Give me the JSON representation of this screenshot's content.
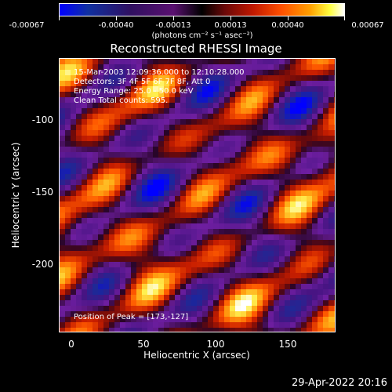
{
  "colorbar": {
    "tick_labels": [
      "-0.00067",
      "-0.00040",
      "-0.00013",
      "0.00013",
      "0.00040",
      "0.00067"
    ],
    "units_text": "(photons cm⁻² s⁻¹ asec⁻²)"
  },
  "title": "Reconstructed RHESSI Image",
  "info": {
    "time_range": "15-Mar-2003 12:09:36.000 to 12:10:28.000",
    "detectors": "Detectors: 3F 4F 5F 6F 7F 8F, Att 0",
    "energy_range": "Energy Range: 25.0 - 50.0 keV",
    "clean_counts": "Clean    Total counts: 595.",
    "peak": "Position of Peak = [173,-127]"
  },
  "axes": {
    "xlabel": "Heliocentric X (arcsec)",
    "ylabel": "Heliocentric Y (arcsec)",
    "x_ticks": [
      "0",
      "50",
      "100",
      "150"
    ],
    "y_ticks": [
      "-100",
      "-150",
      "-200"
    ],
    "xlim": [
      -8,
      185
    ],
    "ylim": [
      -250,
      -60
    ]
  },
  "timestamp": "29-Apr-2022 20:16",
  "colors": {
    "background": "#000000",
    "min": "#0000ff",
    "max": "#ffffff"
  }
}
